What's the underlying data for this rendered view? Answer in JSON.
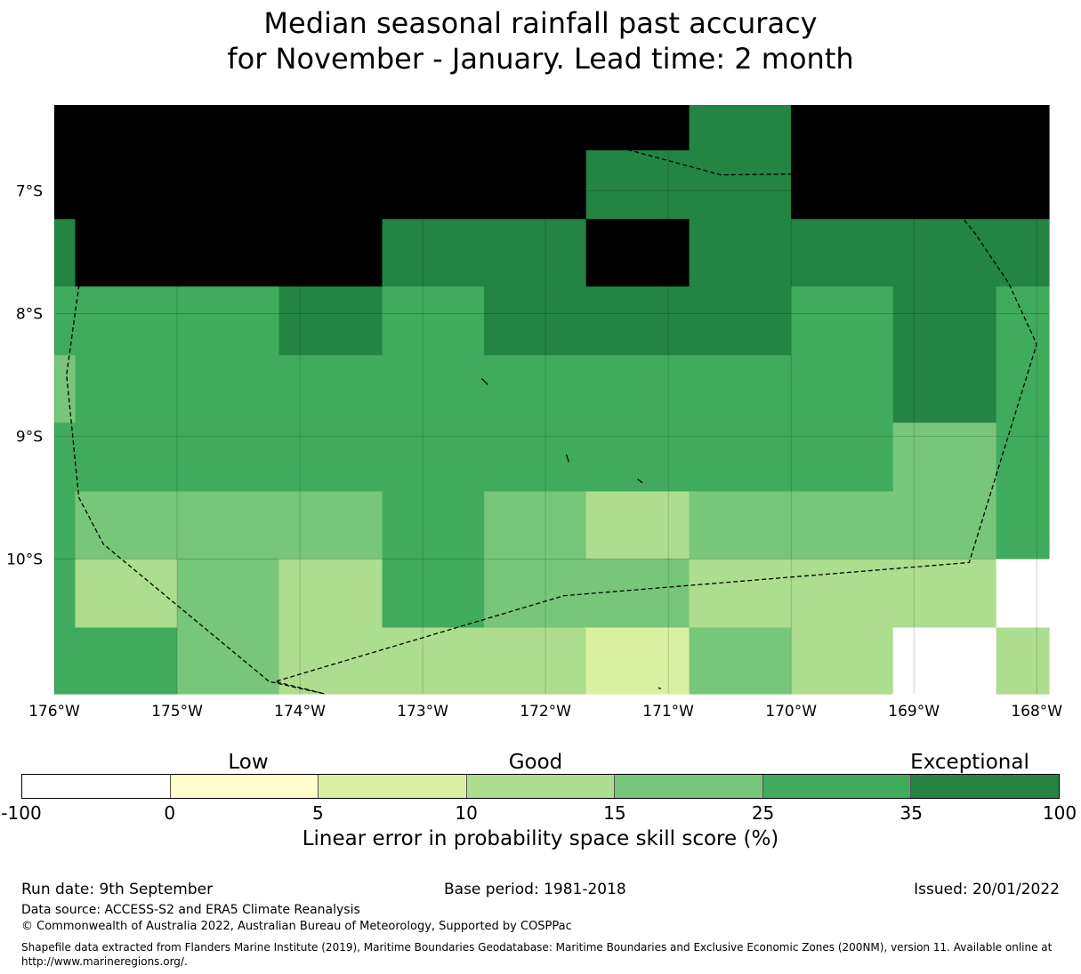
{
  "title": {
    "line1": "Median seasonal rainfall past accuracy",
    "line2": "for November - January. Lead time: 2 month"
  },
  "map": {
    "lon_ticks": [
      "176°W",
      "175°W",
      "174°W",
      "173°W",
      "172°W",
      "171°W",
      "170°W",
      "169°W",
      "168°W"
    ],
    "lat_ticks": [
      "7°S",
      "8°S",
      "9°S",
      "10°S"
    ],
    "extent": {
      "lon": [
        -176.0,
        -167.9
      ],
      "lat": [
        -11.1,
        -6.3
      ]
    },
    "grid_cells": {
      "col_lon_edges": [
        -176.0,
        -175.83,
        -175.0,
        -174.17,
        -173.33,
        -172.5,
        -171.67,
        -170.83,
        -170.0,
        -169.17,
        -168.33,
        -167.9
      ],
      "row_lat_edges": [
        -6.3,
        -6.67,
        -7.23,
        -7.78,
        -8.34,
        -8.89,
        -9.45,
        -10.0,
        -10.56,
        -11.1
      ],
      "bin_rows": [
        [
          7,
          7,
          7,
          7,
          7,
          7,
          7,
          6,
          7,
          7,
          7
        ],
        [
          7,
          7,
          7,
          7,
          7,
          7,
          6,
          6,
          7,
          7,
          7
        ],
        [
          6,
          7,
          7,
          7,
          6,
          6,
          7,
          6,
          6,
          6,
          6
        ],
        [
          5,
          5,
          5,
          6,
          5,
          6,
          6,
          6,
          5,
          6,
          5
        ],
        [
          4,
          5,
          5,
          5,
          5,
          5,
          5,
          5,
          5,
          6,
          5
        ],
        [
          5,
          5,
          5,
          5,
          5,
          5,
          5,
          5,
          5,
          4,
          5
        ],
        [
          5,
          4,
          4,
          4,
          5,
          4,
          3,
          4,
          4,
          4,
          5
        ],
        [
          5,
          3,
          4,
          3,
          5,
          4,
          4,
          3,
          3,
          3,
          0
        ],
        [
          5,
          5,
          4,
          3,
          3,
          3,
          2,
          4,
          3,
          0,
          3
        ]
      ]
    },
    "eez_boundary": [
      [
        -173.23,
        -6.47
      ],
      [
        -171.57,
        -6.6
      ],
      [
        -170.57,
        -6.87
      ],
      [
        -168.9,
        -6.85
      ],
      [
        -168.5,
        -7.35
      ],
      [
        -168.23,
        -7.75
      ],
      [
        -168.0,
        -8.25
      ],
      [
        -168.55,
        -10.03
      ],
      [
        -171.85,
        -10.3
      ],
      [
        -174.2,
        -11.0
      ],
      [
        -173.8,
        -11.1
      ],
      [
        -174.25,
        -11.0
      ],
      [
        -175.6,
        -9.88
      ],
      [
        -175.8,
        -9.5
      ],
      [
        -175.9,
        -8.5
      ],
      [
        -175.8,
        -7.78
      ],
      [
        -174.5,
        -7.0
      ],
      [
        -173.23,
        -6.47
      ]
    ],
    "islands": [
      [
        [
          -172.52,
          -8.53
        ],
        [
          -172.47,
          -8.58
        ]
      ],
      [
        [
          -171.83,
          -9.15
        ],
        [
          -171.81,
          -9.21
        ]
      ],
      [
        [
          -171.25,
          -9.35
        ],
        [
          -171.21,
          -9.38
        ]
      ],
      [
        [
          -171.08,
          -11.05
        ],
        [
          -171.06,
          -11.06
        ]
      ]
    ]
  },
  "colorbar": {
    "bins": [
      {
        "from": -100,
        "to": 0,
        "color": "#ffffff"
      },
      {
        "from": 0,
        "to": 5,
        "color": "#fffdcc"
      },
      {
        "from": 5,
        "to": 10,
        "color": "#d9f0a3"
      },
      {
        "from": 10,
        "to": 15,
        "color": "#addd8e"
      },
      {
        "from": 15,
        "to": 25,
        "color": "#78c679"
      },
      {
        "from": 25,
        "to": 35,
        "color": "#41ab5d"
      },
      {
        "from": 35,
        "to": 100,
        "color": "#238443"
      }
    ],
    "tick_labels": [
      "-100",
      "0",
      "5",
      "10",
      "15",
      "25",
      "35",
      "100"
    ],
    "categories": {
      "low": "Low",
      "good": "Good",
      "exceptional": "Exceptional"
    },
    "title": "Linear error in probability space skill score (%)"
  },
  "footer": {
    "run_date": "Run date: 9th September",
    "base_period": "Base period: 1981-2018",
    "issued": "Issued: 20/01/2022",
    "data_source": "Data source: ACCESS-S2 and ERA5 Climate Reanalysis",
    "copyright": "© Commonwealth of Australia 2022, Australian Bureau of Meteorology, Supported by COSPPac",
    "shapefile_line1": "Shapefile data extracted from Flanders Marine Institute (2019), Maritime Boundaries Geodatabase: Maritime Boundaries and Exclusive Economic Zones (200NM), version 11. Available online at",
    "shapefile_line2": "http://www.marineregions.org/."
  }
}
